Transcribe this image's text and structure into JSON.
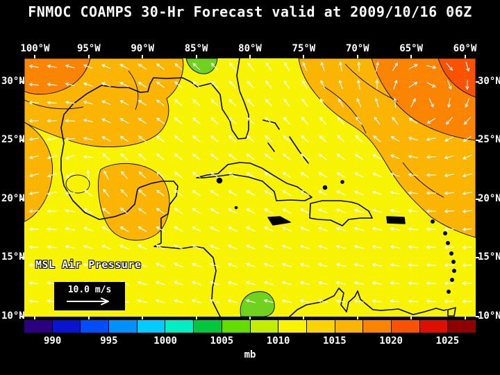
{
  "title": "FNMOC COAMPS 30-Hr Forecast valid at 2009/10/16 06Z",
  "map": {
    "field_label": "MSL Air Pressure",
    "wind_reference": "10.0 m/s",
    "lon_ticks": [
      "100°W",
      "95°W",
      "90°W",
      "85°W",
      "80°W",
      "75°W",
      "70°W",
      "65°W",
      "60°W"
    ],
    "lat_ticks": [
      "30°N",
      "25°N",
      "20°N",
      "15°N",
      "10°N"
    ],
    "fill_colors": {
      "background_1010mb": "#f8f400",
      "orange_1012mb": "#fbb500",
      "dark_orange_1015mb": "#fb8500",
      "red_orange_1017mb": "#fa5200",
      "green_1006mb": "#6fd31d"
    },
    "coastline_color": "#000000",
    "wind_arrow_color": "#ffffff"
  },
  "colorbar": {
    "unit": "mb",
    "tick_labels": [
      "990",
      "995",
      "1000",
      "1005",
      "1010",
      "1015",
      "1020",
      "1025"
    ],
    "colors": [
      "#2b0080",
      "#0a14cf",
      "#004cff",
      "#0090ff",
      "#00ccff",
      "#00eec4",
      "#00c83c",
      "#63dc00",
      "#c3ee00",
      "#f8f400",
      "#fbd400",
      "#fbb500",
      "#fb8500",
      "#fa5200",
      "#de0e00",
      "#8f0000"
    ]
  },
  "chart_data": {
    "type": "heatmap",
    "title": "FNMOC COAMPS 30-Hr Forecast valid at 2009/10/16 06Z",
    "field": "MSL Air Pressure",
    "units": "mb",
    "lon_axis_deg_west": [
      100,
      95,
      90,
      85,
      80,
      75,
      70,
      65,
      60
    ],
    "lat_axis_deg_north": [
      30,
      25,
      20,
      15,
      10
    ],
    "colorbar_ticks_mb": [
      990,
      995,
      1000,
      1005,
      1010,
      1015,
      1020,
      1025
    ],
    "colorbar_step_mb": 2.5,
    "wind_reference_ms": 10.0,
    "field_summary": [
      {
        "region": "most of domain (Gulf of Mexico and Caribbean)",
        "pressure_mb": 1010
      },
      {
        "region": "northwest corner and Bay of Campeche / Yucatan area",
        "pressure_mb": 1012.5
      },
      {
        "region": "northeast Atlantic quadrant (subtropical high)",
        "pressure_mb": 1015
      },
      {
        "region": "far northeast corner",
        "pressure_mb": 1017.5
      },
      {
        "region": "patches at southeast US coast and Panama",
        "pressure_mb": 1006
      }
    ]
  }
}
